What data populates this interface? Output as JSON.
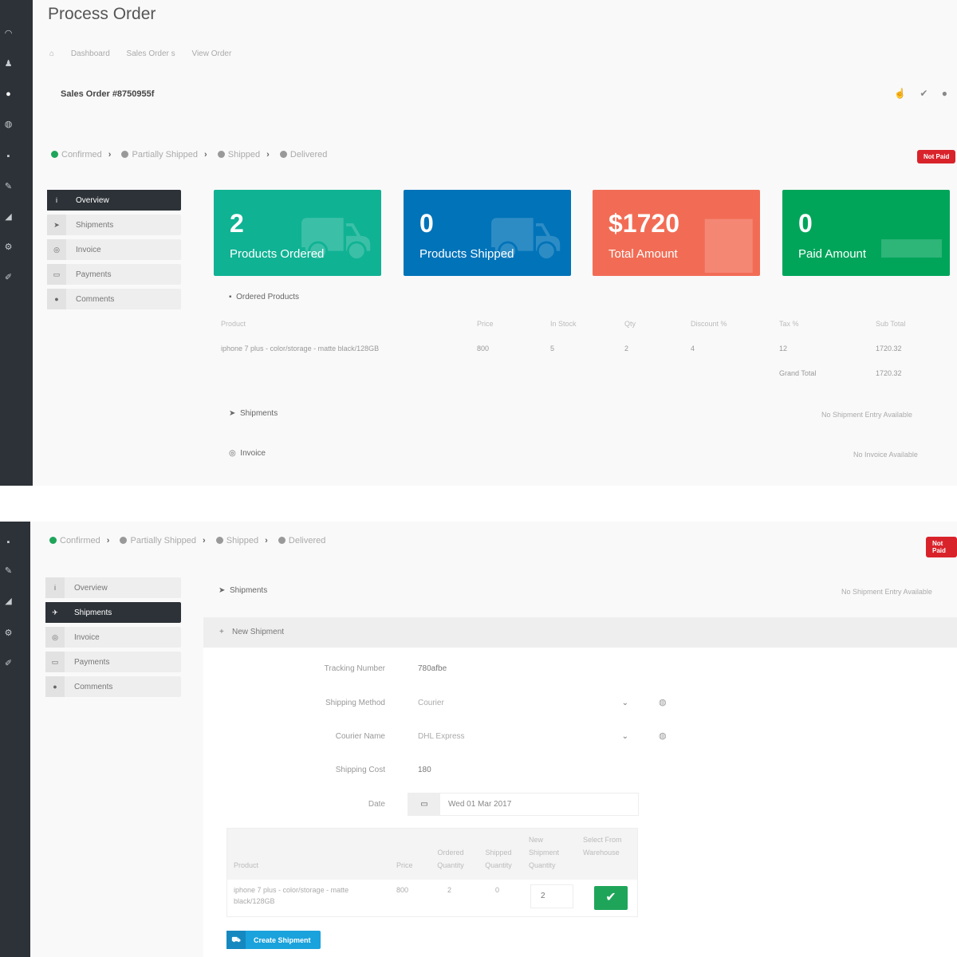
{
  "page": {
    "title": "Process Order"
  },
  "breadcrumb": [
    "Dashboard",
    "Sales Order s",
    "View Order"
  ],
  "sales_order": "Sales Order #8750955f",
  "header_actions": [
    "thumbs-up-icon",
    "check-icon",
    "circle-icon"
  ],
  "steps": [
    {
      "label": "Confirmed",
      "color": "#1fa55a"
    },
    {
      "label": "Partially Shipped",
      "color": "#999999"
    },
    {
      "label": "Shipped",
      "color": "#999999"
    },
    {
      "label": "Delivered",
      "color": "#999999"
    }
  ],
  "badge": "Not Paid",
  "badge_color": "#d9232b",
  "tabs": [
    "Overview",
    "Shipments",
    "Invoice",
    "Payments",
    "Comments"
  ],
  "cards": [
    {
      "value": "2",
      "label": "Products Ordered",
      "color": "#10b294",
      "icon": "cart-icon"
    },
    {
      "value": "0",
      "label": "Products Shipped",
      "color": "#0073b9",
      "icon": "truck-icon"
    },
    {
      "value": "$1720",
      "label": "Total Amount",
      "color": "#f26c55",
      "icon": "suitcase-icon"
    },
    {
      "value": "0",
      "label": "Paid Amount",
      "color": "#00a55a",
      "icon": "money-icon"
    }
  ],
  "ordered_products": {
    "title": "Ordered Products",
    "headers": [
      "Product",
      "Price",
      "In Stock",
      "Qty",
      "Discount %",
      "Tax %",
      "Sub Total"
    ],
    "row": [
      "iphone 7 plus - color/storage - matte black/128GB",
      "800",
      "5",
      "2",
      "4",
      "12",
      "1720.32"
    ],
    "grand_total_label": "Grand Total",
    "grand_total": "1720.32"
  },
  "shipments": {
    "title": "Shipments",
    "empty": "No Shipment Entry Available"
  },
  "invoice": {
    "title": "Invoice",
    "empty": "No Invoice Available"
  },
  "new_shipment": {
    "title": "New Shipment",
    "tracking_label": "Tracking Number",
    "tracking_value": "780afbe",
    "method_label": "Shipping Method",
    "method_value": "Courier",
    "courier_label": "Courier Name",
    "courier_value": "DHL Express",
    "cost_label": "Shipping Cost",
    "cost_value": "180",
    "date_label": "Date",
    "date_value": "Wed 01 Mar 2017",
    "table_headers": [
      "Product",
      "Price",
      "Ordered Quantity",
      "Shipped Quantity",
      "New Shipment Quantity",
      "Select From Warehouse"
    ],
    "table_row": [
      "iphone 7 plus - color/storage - matte black/128GB",
      "800",
      "2",
      "0",
      "2"
    ],
    "create_button": "Create Shipment"
  }
}
